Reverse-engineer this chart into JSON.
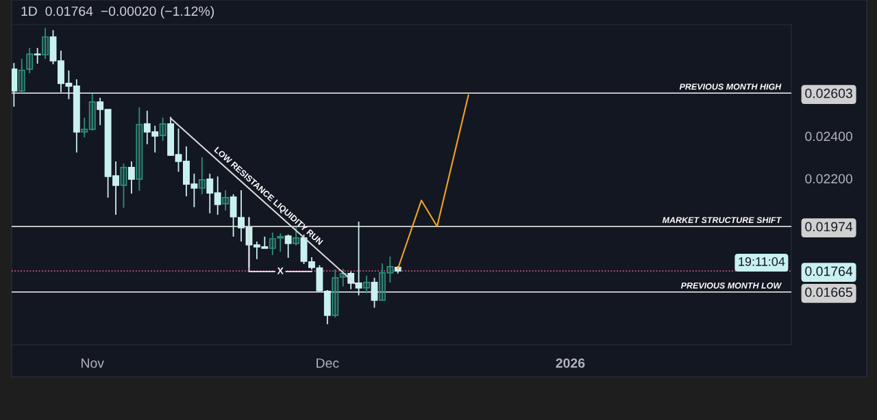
{
  "chart_data": {
    "type": "candlestick",
    "title": "1D  0.01764  −0.00020 (−1.12%)",
    "x": [
      "2025-10-22",
      "2025-10-23",
      "2025-10-24",
      "2025-10-25",
      "2025-10-26",
      "2025-10-27",
      "2025-10-28",
      "2025-10-29",
      "2025-10-30",
      "2025-10-31",
      "2025-11-01",
      "2025-11-02",
      "2025-11-03",
      "2025-11-04",
      "2025-11-05",
      "2025-11-06",
      "2025-11-07",
      "2025-11-08",
      "2025-11-09",
      "2025-11-10",
      "2025-11-11",
      "2025-11-12",
      "2025-11-13",
      "2025-11-14",
      "2025-11-15",
      "2025-11-16",
      "2025-11-17",
      "2025-11-18",
      "2025-11-19",
      "2025-11-20",
      "2025-11-21",
      "2025-11-22",
      "2025-11-23",
      "2025-11-24",
      "2025-11-25",
      "2025-11-26",
      "2025-11-27",
      "2025-11-28",
      "2025-11-29",
      "2025-11-30",
      "2025-12-01",
      "2025-12-02",
      "2025-12-03",
      "2025-12-04",
      "2025-12-05",
      "2025-12-06",
      "2025-12-07",
      "2025-12-08",
      "2025-12-09",
      "2025-12-10"
    ],
    "ohlc": [
      [
        0.02716,
        0.02745,
        0.02539,
        0.02613
      ],
      [
        0.02613,
        0.02765,
        0.02603,
        0.0271
      ],
      [
        0.02716,
        0.02816,
        0.02697,
        0.02787
      ],
      [
        0.02787,
        0.02816,
        0.02742,
        0.02784
      ],
      [
        0.02784,
        0.0291,
        0.02765,
        0.02868
      ],
      [
        0.02868,
        0.029,
        0.02739,
        0.02755
      ],
      [
        0.02755,
        0.02803,
        0.02607,
        0.02649
      ],
      [
        0.02649,
        0.0271,
        0.02574,
        0.02636
      ],
      [
        0.02636,
        0.02668,
        0.02323,
        0.0242
      ],
      [
        0.0242,
        0.02487,
        0.02394,
        0.02432
      ],
      [
        0.02432,
        0.026,
        0.02426,
        0.02561
      ],
      [
        0.02561,
        0.02581,
        0.02452,
        0.02526
      ],
      [
        0.02526,
        0.02526,
        0.0211,
        0.0221
      ],
      [
        0.02213,
        0.02281,
        0.02029,
        0.02168
      ],
      [
        0.02168,
        0.02271,
        0.02062,
        0.02252
      ],
      [
        0.02252,
        0.02281,
        0.02129,
        0.02197
      ],
      [
        0.02197,
        0.02536,
        0.02142,
        0.02455
      ],
      [
        0.02458,
        0.0252,
        0.02362,
        0.0242
      ],
      [
        0.0242,
        0.02449,
        0.02323,
        0.024
      ],
      [
        0.02403,
        0.02487,
        0.02378,
        0.02458
      ],
      [
        0.02458,
        0.02491,
        0.02307,
        0.0231
      ],
      [
        0.02313,
        0.02436,
        0.02232,
        0.02281
      ],
      [
        0.02281,
        0.02352,
        0.02116,
        0.02174
      ],
      [
        0.02174,
        0.02223,
        0.02065,
        0.02155
      ],
      [
        0.02155,
        0.023,
        0.02126,
        0.02194
      ],
      [
        0.02197,
        0.02223,
        0.02036,
        0.02132
      ],
      [
        0.02132,
        0.0221,
        0.02029,
        0.02078
      ],
      [
        0.02081,
        0.02145,
        0.02049,
        0.0211
      ],
      [
        0.02113,
        0.02126,
        0.01926,
        0.0202
      ],
      [
        0.02016,
        0.02145,
        0.01903,
        0.01968
      ],
      [
        0.01968,
        0.02016,
        0.01781,
        0.01887
      ],
      [
        0.01887,
        0.01903,
        0.0182,
        0.01878
      ],
      [
        0.01878,
        0.01926,
        0.01871,
        0.01871
      ],
      [
        0.01871,
        0.01945,
        0.01839,
        0.01916
      ],
      [
        0.0192,
        0.01942,
        0.01855,
        0.01926
      ],
      [
        0.01929,
        0.01936,
        0.01826,
        0.01894
      ],
      [
        0.01894,
        0.01971,
        0.01884,
        0.0192
      ],
      [
        0.0192,
        0.01936,
        0.01797,
        0.0181
      ],
      [
        0.01807,
        0.01829,
        0.01771,
        0.01781
      ],
      [
        0.01778,
        0.01791,
        0.01668,
        0.01671
      ],
      [
        0.01668,
        0.01674,
        0.01513,
        0.01555
      ],
      [
        0.01555,
        0.01771,
        0.01545,
        0.01732
      ],
      [
        0.01736,
        0.01774,
        0.01691,
        0.01752
      ],
      [
        0.01752,
        0.01761,
        0.01678,
        0.01707
      ],
      [
        0.01707,
        0.01997,
        0.01649,
        0.01684
      ],
      [
        0.01684,
        0.01742,
        0.01658,
        0.0171
      ],
      [
        0.0171,
        0.01732,
        0.01591,
        0.01626
      ],
      [
        0.01626,
        0.018,
        0.01626,
        0.01755
      ],
      [
        0.01755,
        0.01832,
        0.0171,
        0.01784
      ],
      [
        0.01781,
        0.01787,
        0.01752,
        0.01764
      ]
    ],
    "colors": [
      "#c9f1f1",
      "#2f8f7b",
      "#2f8f7b",
      "#c9f1f1",
      "#2f8f7b",
      "#c9f1f1",
      "#c9f1f1",
      "#c9f1f1",
      "#c9f1f1",
      "#2f8f7b",
      "#2f8f7b",
      "#c9f1f1",
      "#c9f1f1",
      "#c9f1f1",
      "#2f8f7b",
      "#c9f1f1",
      "#2f8f7b",
      "#c9f1f1",
      "#c9f1f1",
      "#2f8f7b",
      "#c9f1f1",
      "#c9f1f1",
      "#c9f1f1",
      "#c9f1f1",
      "#2f8f7b",
      "#c9f1f1",
      "#c9f1f1",
      "#2f8f7b",
      "#c9f1f1",
      "#c9f1f1",
      "#c9f1f1",
      "#c9f1f1",
      "#c9f1f1",
      "#2f8f7b",
      "#2f8f7b",
      "#c9f1f1",
      "#2f8f7b",
      "#c9f1f1",
      "#c9f1f1",
      "#c9f1f1",
      "#c9f1f1",
      "#2f8f7b",
      "#2f8f7b",
      "#c9f1f1",
      "#c9f1f1",
      "#2f8f7b",
      "#c9f1f1",
      "#2f8f7b",
      "#2f8f7b",
      "#c9f1f1"
    ],
    "series": [
      {
        "type": "line",
        "color": "#d9d9d9",
        "x": [
          "2025-11-11",
          "2025-12-04T17:00"
        ],
        "values": [
          0.02484,
          0.017
        ]
      },
      {
        "type": "line",
        "color": "#d9d9d9",
        "x": [
          "2025-11-21",
          "2025-11-21",
          "2025-11-29"
        ],
        "values": [
          0.02016,
          0.01761,
          0.01761
        ]
      },
      {
        "type": "line",
        "color": "#f5a623",
        "x": [
          "2025-12-10",
          "2025-12-13",
          "2025-12-15",
          "2025-12-19"
        ],
        "values": [
          0.01775,
          0.02097,
          0.01974,
          0.02594
        ]
      }
    ],
    "annotations": [
      "LOW RESISTANCE LIQUIDITY RUN",
      {
        "text": "X",
        "x": "2025-11-25",
        "y": 0.01761
      },
      "19:11:04"
    ],
    "ref_lines": [
      {
        "axis": "y",
        "value": 0.02603,
        "label": "PREVIOUS MONTH HIGH",
        "color": "#d9d9d9",
        "line_style": "solid"
      },
      {
        "axis": "y",
        "value": 0.01974,
        "label": "MARKET STRUCTURE SHIFT",
        "color": "#d9d9d9",
        "line_style": "solid"
      },
      {
        "axis": "y",
        "value": 0.01764,
        "color": "#e0608a",
        "line_style": "dotted"
      },
      {
        "axis": "y",
        "value": 0.01665,
        "label": "PREVIOUS MONTH LOW",
        "color": "#d9d9d9",
        "line_style": "solid"
      }
    ],
    "xlim": [
      "2025-10-21T17:00",
      "2026-01-29T05:00"
    ],
    "xticks": [
      {
        "value": "2025-11-01",
        "label": "Nov"
      },
      {
        "value": "2025-12-01",
        "label": "Dec"
      },
      {
        "value": "2026-01-01",
        "label": "2026"
      }
    ],
    "ylim": [
      0.01416,
      0.02926
    ],
    "yticks": [
      {
        "value": 0.01665,
        "label": "0.01665"
      },
      {
        "value": 0.01764,
        "label": "0.01764"
      },
      {
        "value": 0.01974,
        "label": "0.01974"
      },
      {
        "value": 0.022,
        "label": "0.02200"
      },
      {
        "value": 0.024,
        "label": "0.02400"
      },
      {
        "value": 0.02603,
        "label": "0.02603"
      }
    ]
  }
}
